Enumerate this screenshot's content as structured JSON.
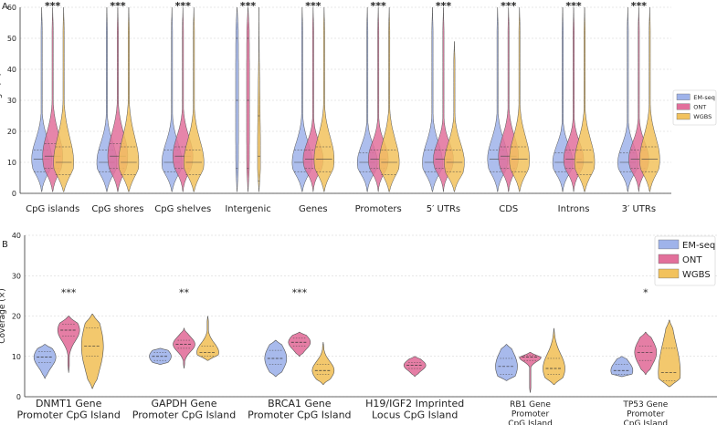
{
  "colors": {
    "em": "#9fb3ea",
    "ont": "#e2709b",
    "wgbs": "#f2c25d",
    "grid": "#cfcfcf",
    "axis": "#333333"
  },
  "chart_data": [
    {
      "panel": "A",
      "type": "violin",
      "title": "",
      "ylabel": "Coverage (×)",
      "ylim": [
        0,
        60
      ],
      "yticks": [
        0,
        10,
        20,
        30,
        40,
        50,
        60
      ],
      "grid": true,
      "legend_position": "right",
      "legend": [
        "EM-seq",
        "ONT",
        "WGBS"
      ],
      "categories": [
        "CpG islands",
        "CpG shores",
        "CpG shelves",
        "Intergenic",
        "Genes",
        "Promoters",
        "5′ UTRs",
        "CDS",
        "Introns",
        "3′ UTRs"
      ],
      "significance": [
        "***",
        "***",
        "***",
        "***",
        "***",
        "***",
        "***",
        "***",
        "***",
        "***"
      ],
      "series": [
        {
          "name": "EM-seq",
          "medians": [
            11,
            10,
            10,
            30,
            10,
            10,
            10,
            11,
            10,
            10
          ],
          "q1": [
            7,
            7,
            7,
            8,
            7,
            7,
            7,
            7,
            7,
            7
          ],
          "q3": [
            14,
            14,
            14,
            50,
            14,
            13,
            14,
            14,
            13,
            13
          ],
          "max": [
            60,
            60,
            60,
            60,
            60,
            60,
            60,
            60,
            60,
            60
          ]
        },
        {
          "name": "ONT",
          "medians": [
            12,
            12,
            12,
            30,
            11,
            11,
            11,
            12,
            11,
            11
          ],
          "q1": [
            8,
            8,
            8,
            8,
            8,
            8,
            8,
            8,
            8,
            8
          ],
          "q3": [
            16,
            16,
            15,
            50,
            14,
            14,
            14,
            15,
            14,
            14
          ],
          "max": [
            60,
            60,
            60,
            60,
            60,
            60,
            60,
            60,
            60,
            60
          ]
        },
        {
          "name": "WGBS",
          "medians": [
            10,
            10,
            10,
            12,
            11,
            10,
            10,
            11,
            10,
            11
          ],
          "q1": [
            6,
            6,
            6,
            4,
            7,
            6,
            7,
            7,
            6,
            7
          ],
          "q3": [
            15,
            15,
            14,
            25,
            15,
            14,
            14,
            15,
            14,
            15
          ],
          "max": [
            60,
            60,
            60,
            60,
            60,
            60,
            49,
            60,
            60,
            60
          ]
        }
      ]
    },
    {
      "panel": "B",
      "type": "violin",
      "title": "",
      "ylabel": "Coverage (×)",
      "ylim": [
        0,
        40
      ],
      "yticks": [
        0,
        10,
        20,
        30,
        40
      ],
      "grid": true,
      "legend_position": "top-right",
      "legend": [
        "EM-seq",
        "ONT",
        "WGBS"
      ],
      "categories": [
        "DNMT1 Gene\nPromoter CpG Island",
        "GAPDH Gene\nPromoter CpG Island",
        "BRCA1 Gene\nPromoter CpG Island",
        "H19/IGF2 Imprinted\nLocus CpG Island",
        "RB1 Gene\nPromoter\nCpG Island",
        "TP53 Gene\nPromoter\nCpG Island"
      ],
      "significance": [
        "***",
        "**",
        "***",
        "",
        "",
        "*"
      ],
      "series": [
        {
          "name": "EM-seq",
          "present": [
            true,
            true,
            true,
            false,
            true,
            true
          ],
          "min": [
            4.5,
            8,
            5,
            null,
            4,
            5
          ],
          "q1": [
            8.5,
            9,
            8,
            null,
            5.5,
            5.5
          ],
          "median": [
            9.8,
            10,
            9.5,
            null,
            7.5,
            6.5
          ],
          "q3": [
            11.2,
            11,
            11.5,
            null,
            9.5,
            8
          ],
          "max": [
            13,
            12,
            14,
            null,
            13,
            10
          ]
        },
        {
          "name": "ONT",
          "present": [
            true,
            true,
            true,
            true,
            true,
            true
          ],
          "min": [
            6,
            7,
            10,
            5,
            1,
            5.5
          ],
          "q1": [
            15,
            12,
            12.5,
            7,
            9,
            9
          ],
          "median": [
            16.5,
            13,
            13.5,
            7.8,
            9.8,
            11
          ],
          "q3": [
            18,
            14,
            14.5,
            8.5,
            10.2,
            12.5
          ],
          "max": [
            20,
            17,
            16,
            10,
            11,
            16
          ]
        },
        {
          "name": "WGBS",
          "present": [
            true,
            true,
            true,
            false,
            true,
            true
          ],
          "min": [
            2,
            9,
            3,
            null,
            3,
            2.5
          ],
          "q1": [
            10,
            10,
            5.5,
            null,
            5.5,
            4
          ],
          "median": [
            12.5,
            11,
            6.5,
            null,
            7,
            6
          ],
          "q3": [
            17,
            12.5,
            8,
            null,
            9.5,
            12
          ],
          "max": [
            20.5,
            20,
            13.5,
            null,
            17,
            19
          ]
        }
      ]
    }
  ]
}
